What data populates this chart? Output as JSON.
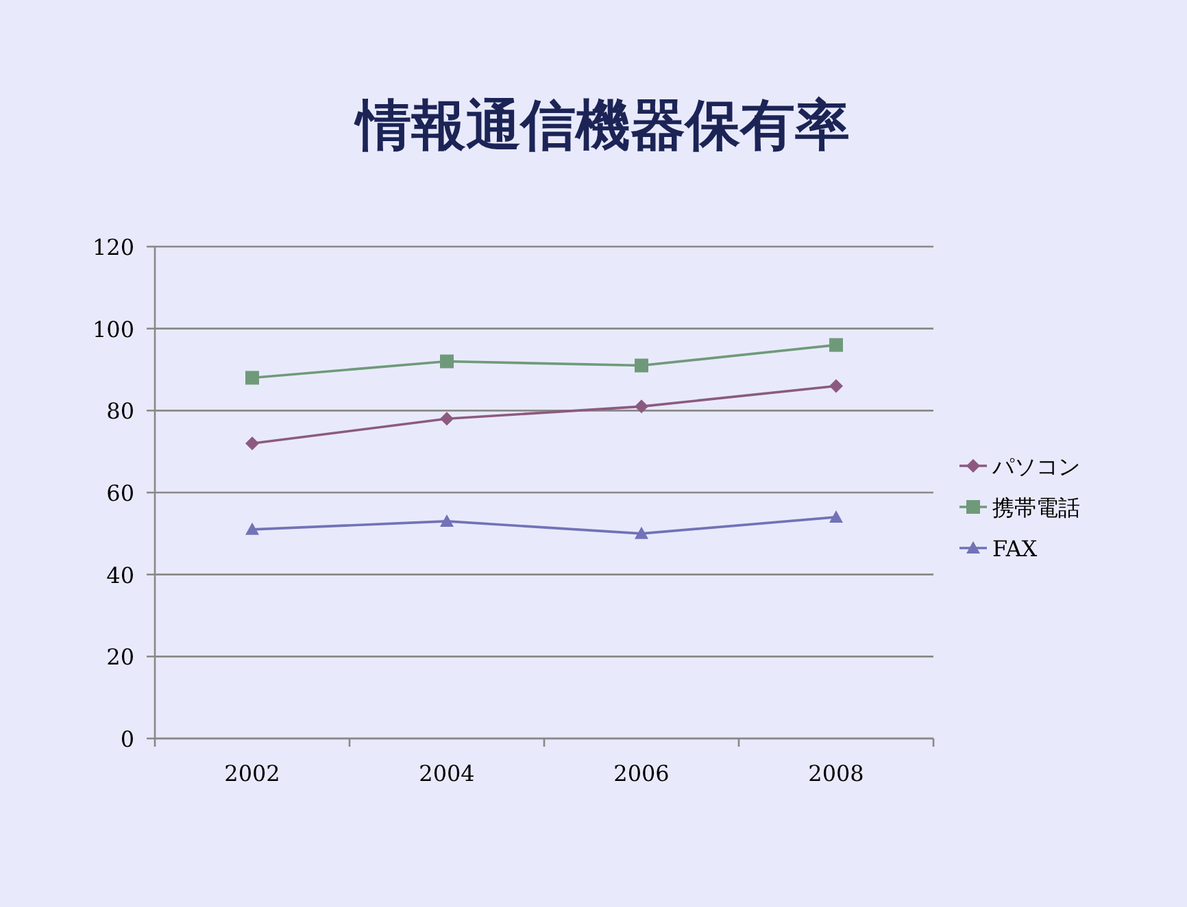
{
  "chart_data": {
    "type": "line",
    "title": "情報通信機器保有率",
    "categories": [
      "2002",
      "2004",
      "2006",
      "2008"
    ],
    "series": [
      {
        "name": "パソコン",
        "color": "#8c5a80",
        "values": [
          72,
          78,
          81,
          86
        ],
        "marker": "diamond"
      },
      {
        "name": "携帯電話",
        "color": "#6f9a7a",
        "values": [
          88,
          92,
          91,
          96
        ],
        "marker": "square"
      },
      {
        "name": "FAX",
        "color": "#7272b8",
        "values": [
          51,
          53,
          50,
          54
        ],
        "marker": "triangle"
      }
    ],
    "ylim": [
      0,
      120
    ],
    "yticks": [
      0,
      20,
      40,
      60,
      80,
      100,
      120
    ],
    "grid": "y",
    "legend": "right",
    "line_style": "solid"
  }
}
